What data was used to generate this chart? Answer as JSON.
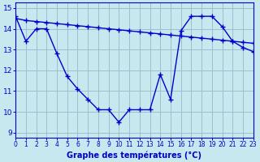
{
  "line1_x": [
    0,
    1,
    2,
    3,
    4,
    5,
    6,
    7,
    8,
    9,
    10,
    11,
    12,
    13,
    14,
    15,
    16,
    17,
    18,
    19,
    20,
    21,
    22,
    23
  ],
  "line1_y": [
    14.6,
    13.4,
    14.0,
    14.0,
    12.8,
    11.7,
    11.1,
    10.6,
    10.1,
    10.1,
    9.5,
    10.1,
    10.1,
    10.1,
    11.8,
    10.6,
    13.9,
    14.6,
    14.6,
    14.6,
    14.1,
    13.4,
    13.1,
    12.9
  ],
  "line2_x": [
    0,
    1,
    2,
    3,
    4,
    5,
    6,
    7,
    8,
    9,
    10,
    11,
    12,
    13,
    14,
    15,
    16,
    17,
    18,
    19,
    20,
    21,
    22,
    23
  ],
  "line2_y": [
    14.5,
    14.4,
    14.35,
    14.3,
    14.25,
    14.2,
    14.15,
    14.1,
    14.05,
    14.0,
    13.95,
    13.9,
    13.85,
    13.8,
    13.75,
    13.7,
    13.65,
    13.6,
    13.55,
    13.5,
    13.45,
    13.4,
    13.35,
    13.3
  ],
  "line_color": "#0000cc",
  "bg_color": "#c8e8f0",
  "grid_color": "#9bbfcc",
  "xlabel": "Graphe des températures (°C)",
  "ylim": [
    8.75,
    15.25
  ],
  "xlim": [
    0,
    23
  ],
  "yticks": [
    9,
    10,
    11,
    12,
    13,
    14,
    15
  ],
  "xticks": [
    0,
    1,
    2,
    3,
    4,
    5,
    6,
    7,
    8,
    9,
    10,
    11,
    12,
    13,
    14,
    15,
    16,
    17,
    18,
    19,
    20,
    21,
    22,
    23
  ],
  "xlabel_fontsize": 7,
  "tick_fontsize": 5.5,
  "ytick_fontsize": 6.5
}
